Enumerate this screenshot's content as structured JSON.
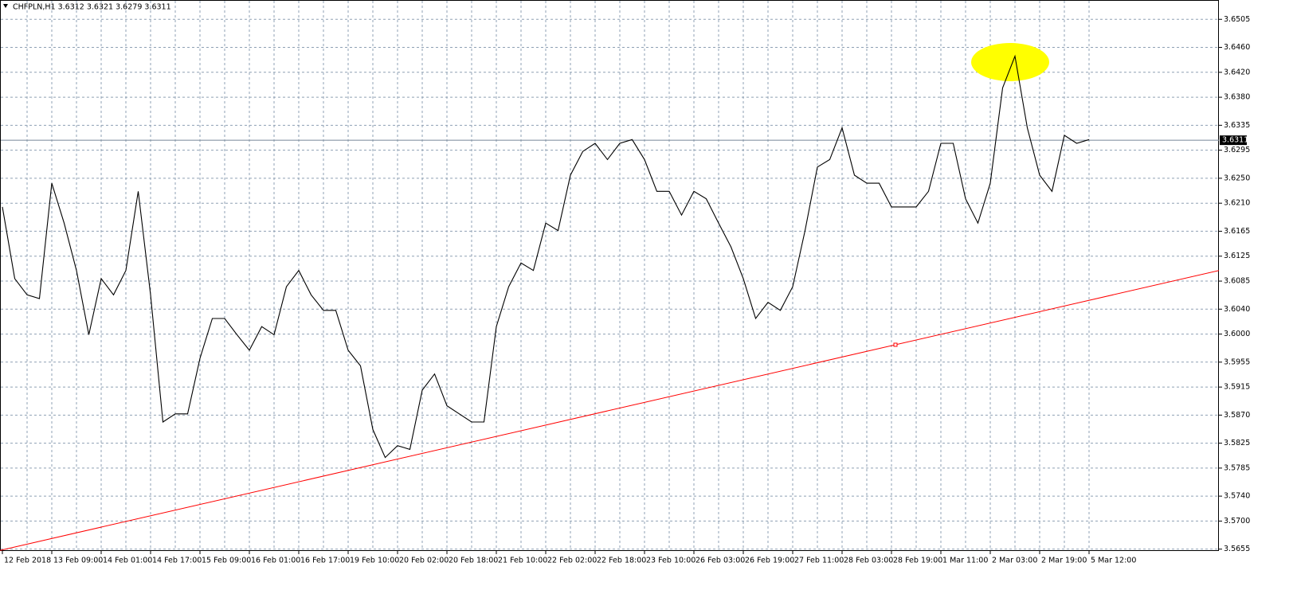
{
  "chart_data": {
    "type": "line",
    "title": "CHFPLN,H1  3.6312 3.6321 3.6279 3.6311",
    "categories": [
      "12 Feb 2018",
      null,
      null,
      null,
      "13 Feb 09:00",
      null,
      null,
      null,
      "14 Feb 01:00",
      null,
      null,
      null,
      "14 Feb 17:00",
      null,
      null,
      null,
      "15 Feb 09:00",
      null,
      null,
      null,
      "16 Feb 01:00",
      null,
      null,
      null,
      "16 Feb 17:00",
      null,
      null,
      null,
      "19 Feb 10:00",
      null,
      null,
      null,
      "20 Feb 02:00",
      null,
      null,
      null,
      "20 Feb 18:00",
      null,
      null,
      null,
      "21 Feb 10:00",
      null,
      null,
      null,
      "22 Feb 02:00",
      null,
      null,
      null,
      "22 Feb 18:00",
      null,
      null,
      null,
      "23 Feb 10:00",
      null,
      null,
      null,
      "26 Feb 03:00",
      null,
      null,
      null,
      "26 Feb 19:00",
      null,
      null,
      null,
      "27 Feb 11:00",
      null,
      null,
      null,
      "28 Feb 03:00",
      null,
      null,
      null,
      "28 Feb 19:00",
      null,
      null,
      null,
      "1 Mar 11:00",
      null,
      null,
      null,
      "2 Mar 03:00",
      null,
      null,
      null,
      "2 Mar 19:00",
      null,
      null,
      null,
      "5 Mar 12:00"
    ],
    "values": [
      3.6204,
      3.6089,
      3.6063,
      3.6057,
      3.6242,
      3.6178,
      3.6102,
      3.5999,
      3.6089,
      3.6063,
      3.6102,
      3.6229,
      3.6063,
      3.5859,
      3.5872,
      3.5872,
      3.5961,
      3.6025,
      3.6025,
      3.5999,
      3.5974,
      3.6012,
      3.5999,
      3.6076,
      3.6102,
      3.6063,
      3.6038,
      3.6038,
      3.5974,
      3.5949,
      3.5847,
      3.5802,
      3.5821,
      3.5815,
      3.591,
      3.5936,
      3.5885,
      3.5872,
      3.5859,
      3.5859,
      3.6012,
      3.6076,
      3.6114,
      3.6102,
      3.6178,
      3.6166,
      3.6255,
      3.6293,
      3.6306,
      3.628,
      3.6306,
      3.6312,
      3.628,
      3.6229,
      3.6229,
      3.6191,
      3.6229,
      3.6217,
      3.6178,
      3.614,
      3.6089,
      3.6025,
      3.6051,
      3.6038,
      3.6076,
      3.6166,
      3.6268,
      3.628,
      3.6331,
      3.6255,
      3.6242,
      3.6242,
      3.6204,
      3.6204,
      3.6204,
      3.6229,
      3.6306,
      3.6306,
      3.6217,
      3.6178,
      3.6242,
      3.6395,
      3.6446,
      3.6331,
      3.6255,
      3.6229,
      3.6319,
      3.6306,
      3.6312
    ],
    "color": "#000000",
    "current_price": 3.6311,
    "trendline": {
      "color": "#ff0000",
      "values": [
        3.5653,
        3.6102
      ]
    },
    "ylim": [
      3.5652,
      3.6536
    ],
    "yticks": [
      3.6505,
      {
        "value": 3.646,
        "label": "3.6460"
      },
      {
        "value": 3.642,
        "label": "3.6420"
      },
      {
        "value": 3.638,
        "label": "3.6380"
      },
      3.6335,
      3.6295,
      {
        "value": 3.625,
        "label": "3.6250"
      },
      {
        "value": 3.621,
        "label": "3.6210"
      },
      3.6165,
      3.6125,
      3.6085,
      {
        "value": 3.604,
        "label": "3.6040"
      },
      {
        "value": 3.6,
        "label": "3.6000"
      },
      3.5955,
      3.5915,
      {
        "value": 3.587,
        "label": "3.5870"
      },
      3.5825,
      3.5785,
      {
        "value": 3.574,
        "label": "3.5740"
      },
      {
        "value": 3.57,
        "label": "3.5700"
      },
      3.5655
    ],
    "grid": true
  }
}
